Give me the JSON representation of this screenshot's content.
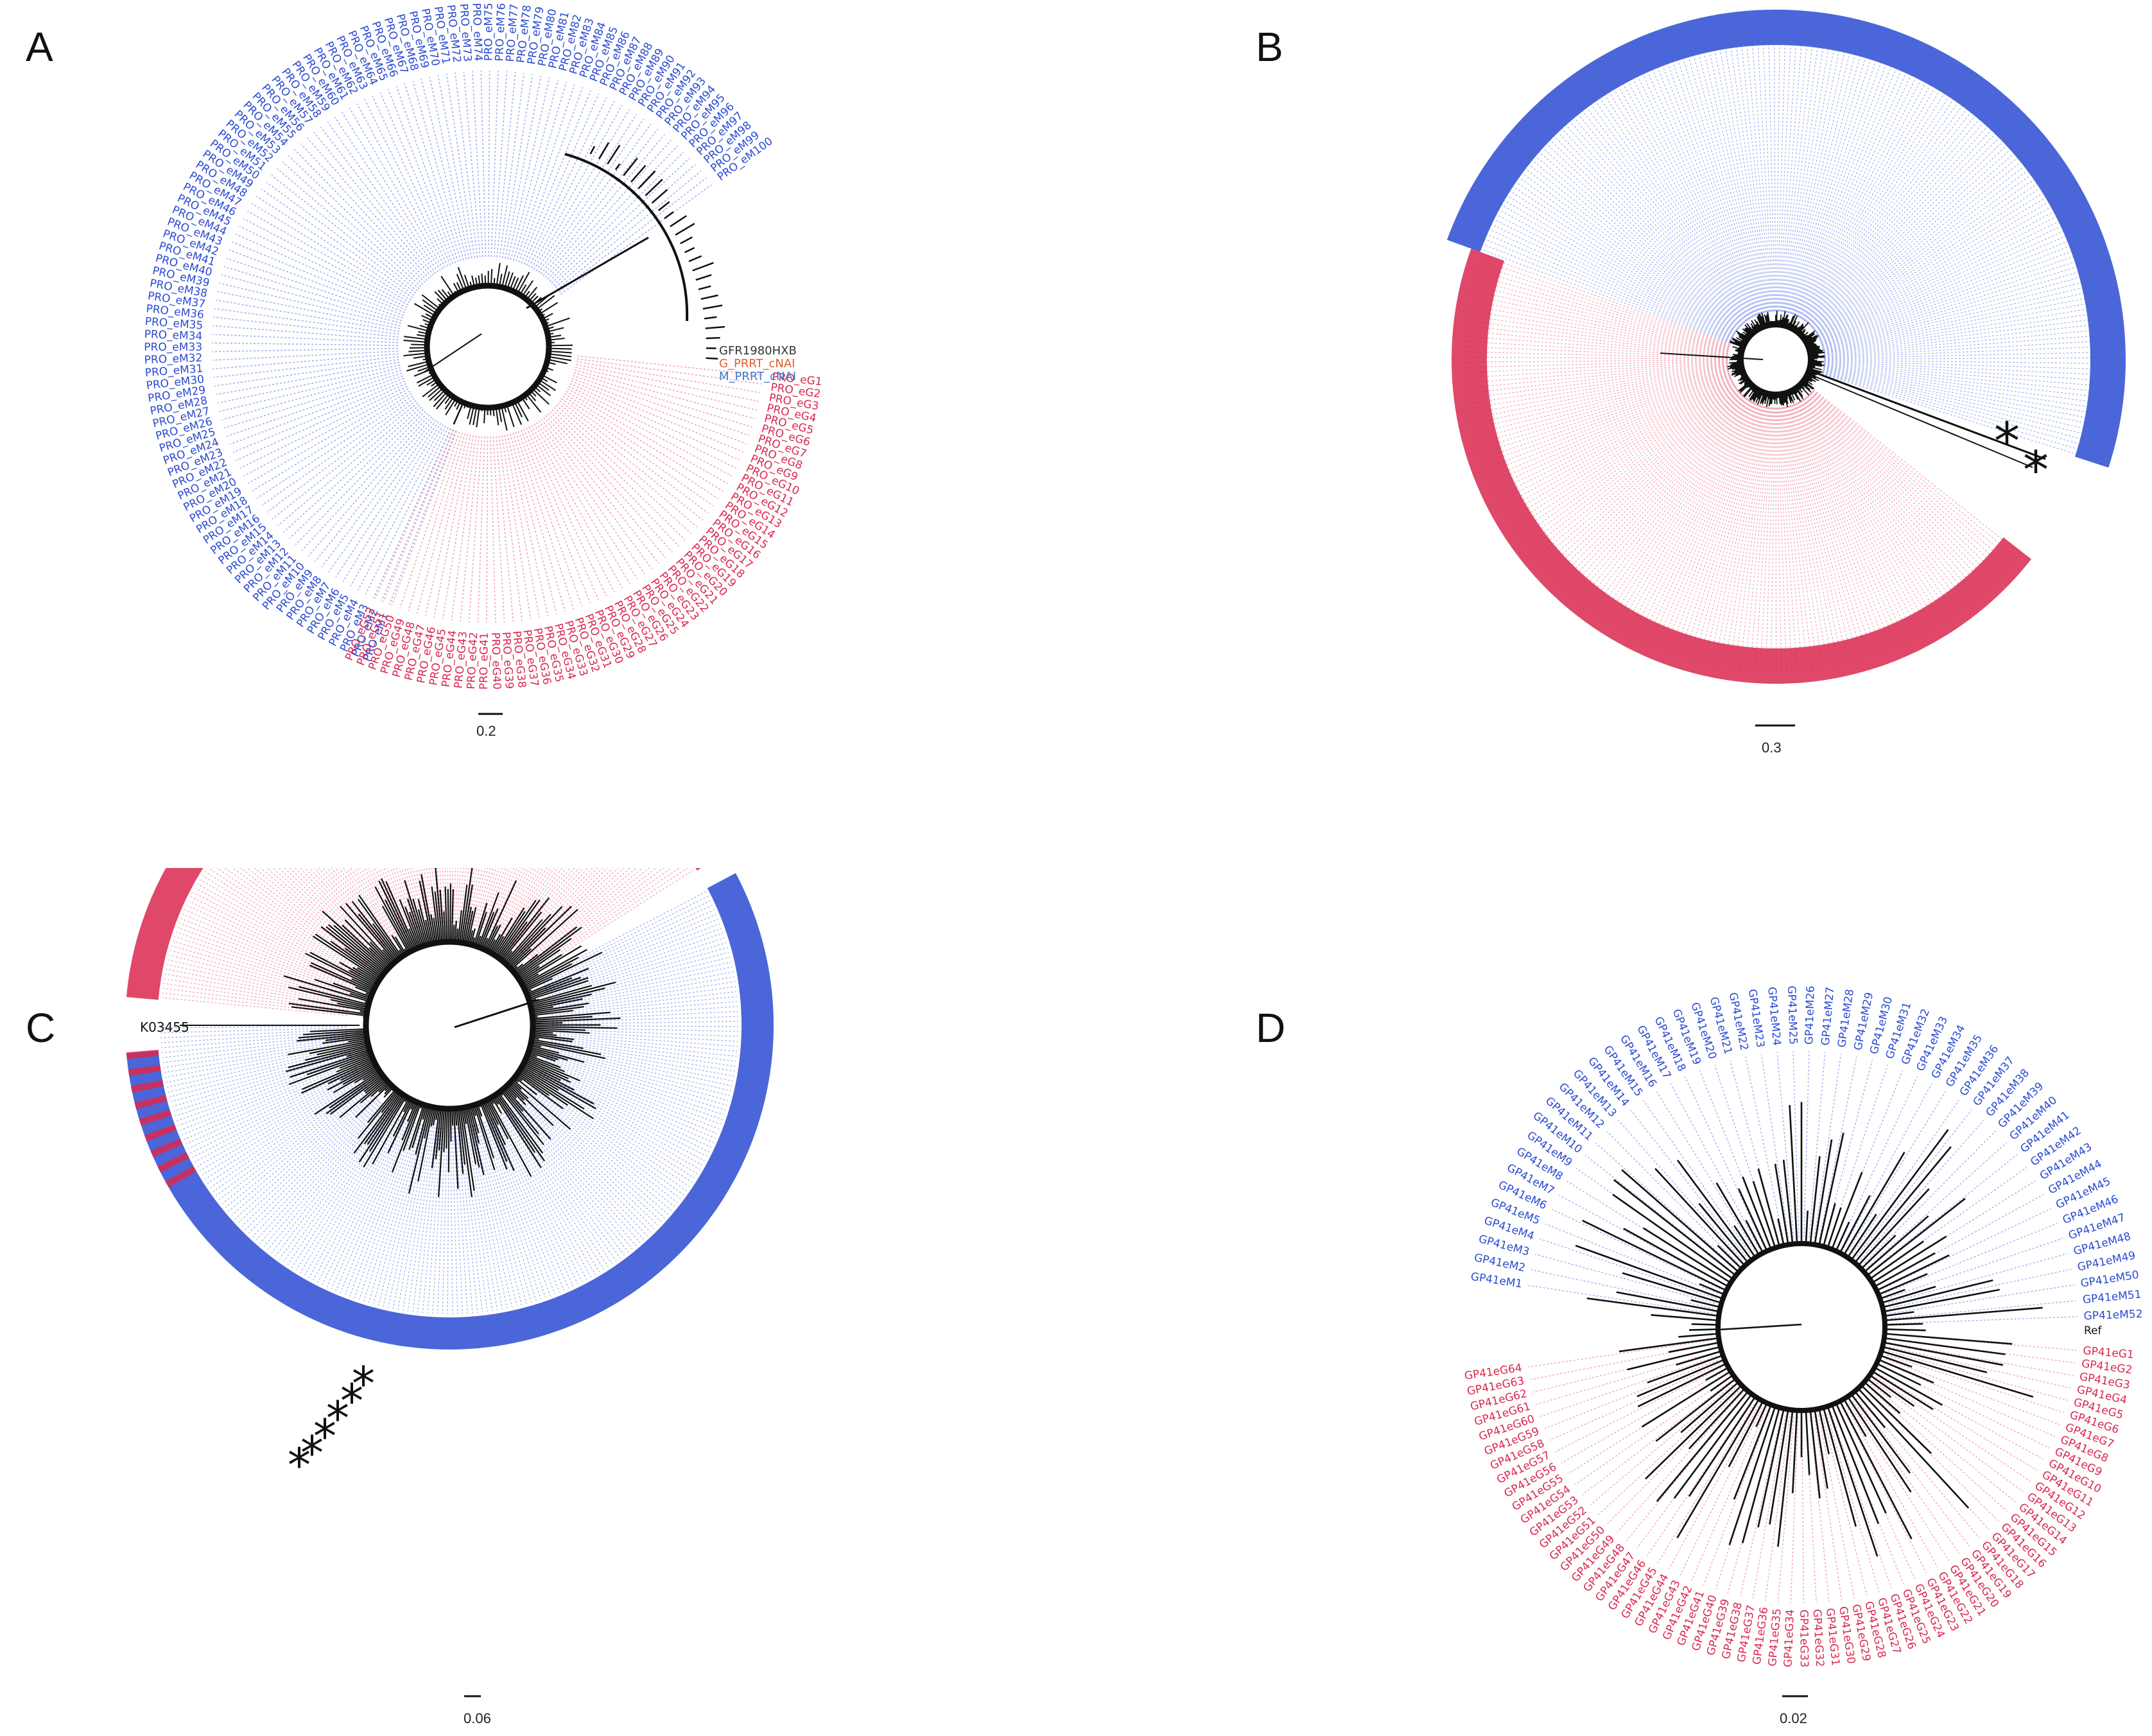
{
  "colors": {
    "blue": "#2b4bd1",
    "red": "#d9284e",
    "blue_light": "#9fb0ee",
    "red_light": "#f0a4b4",
    "black": "#111111"
  },
  "panels": [
    {
      "letter": "A",
      "scale": "0.2",
      "special_labels": [
        {
          "text": "GFR1980HXB",
          "color": "#333333"
        },
        {
          "text": "G_PRRT_cNAI",
          "color": "#e0602c"
        },
        {
          "text": "M_PRRT_cNAI",
          "color": "#3a7ad0"
        }
      ],
      "blue_prefix": "PRO_eM",
      "blue_count": 100,
      "red_prefix": "PRO_eG",
      "red_count": 52
    },
    {
      "letter": "B",
      "scale": "0.3",
      "asterisks": [
        "*",
        "*"
      ]
    },
    {
      "letter": "C",
      "scale": "0.06",
      "special_labels": [
        {
          "text": "K03455",
          "color": "#111111"
        }
      ],
      "asterisks": [
        "*",
        "*",
        "*",
        "*",
        "*",
        "*"
      ]
    },
    {
      "letter": "D",
      "scale": "0.02",
      "ref_label": "Ref",
      "blue_prefix": "GP41eM",
      "blue_count": 52,
      "red_prefix": "GP41eG",
      "red_count": 64
    }
  ]
}
